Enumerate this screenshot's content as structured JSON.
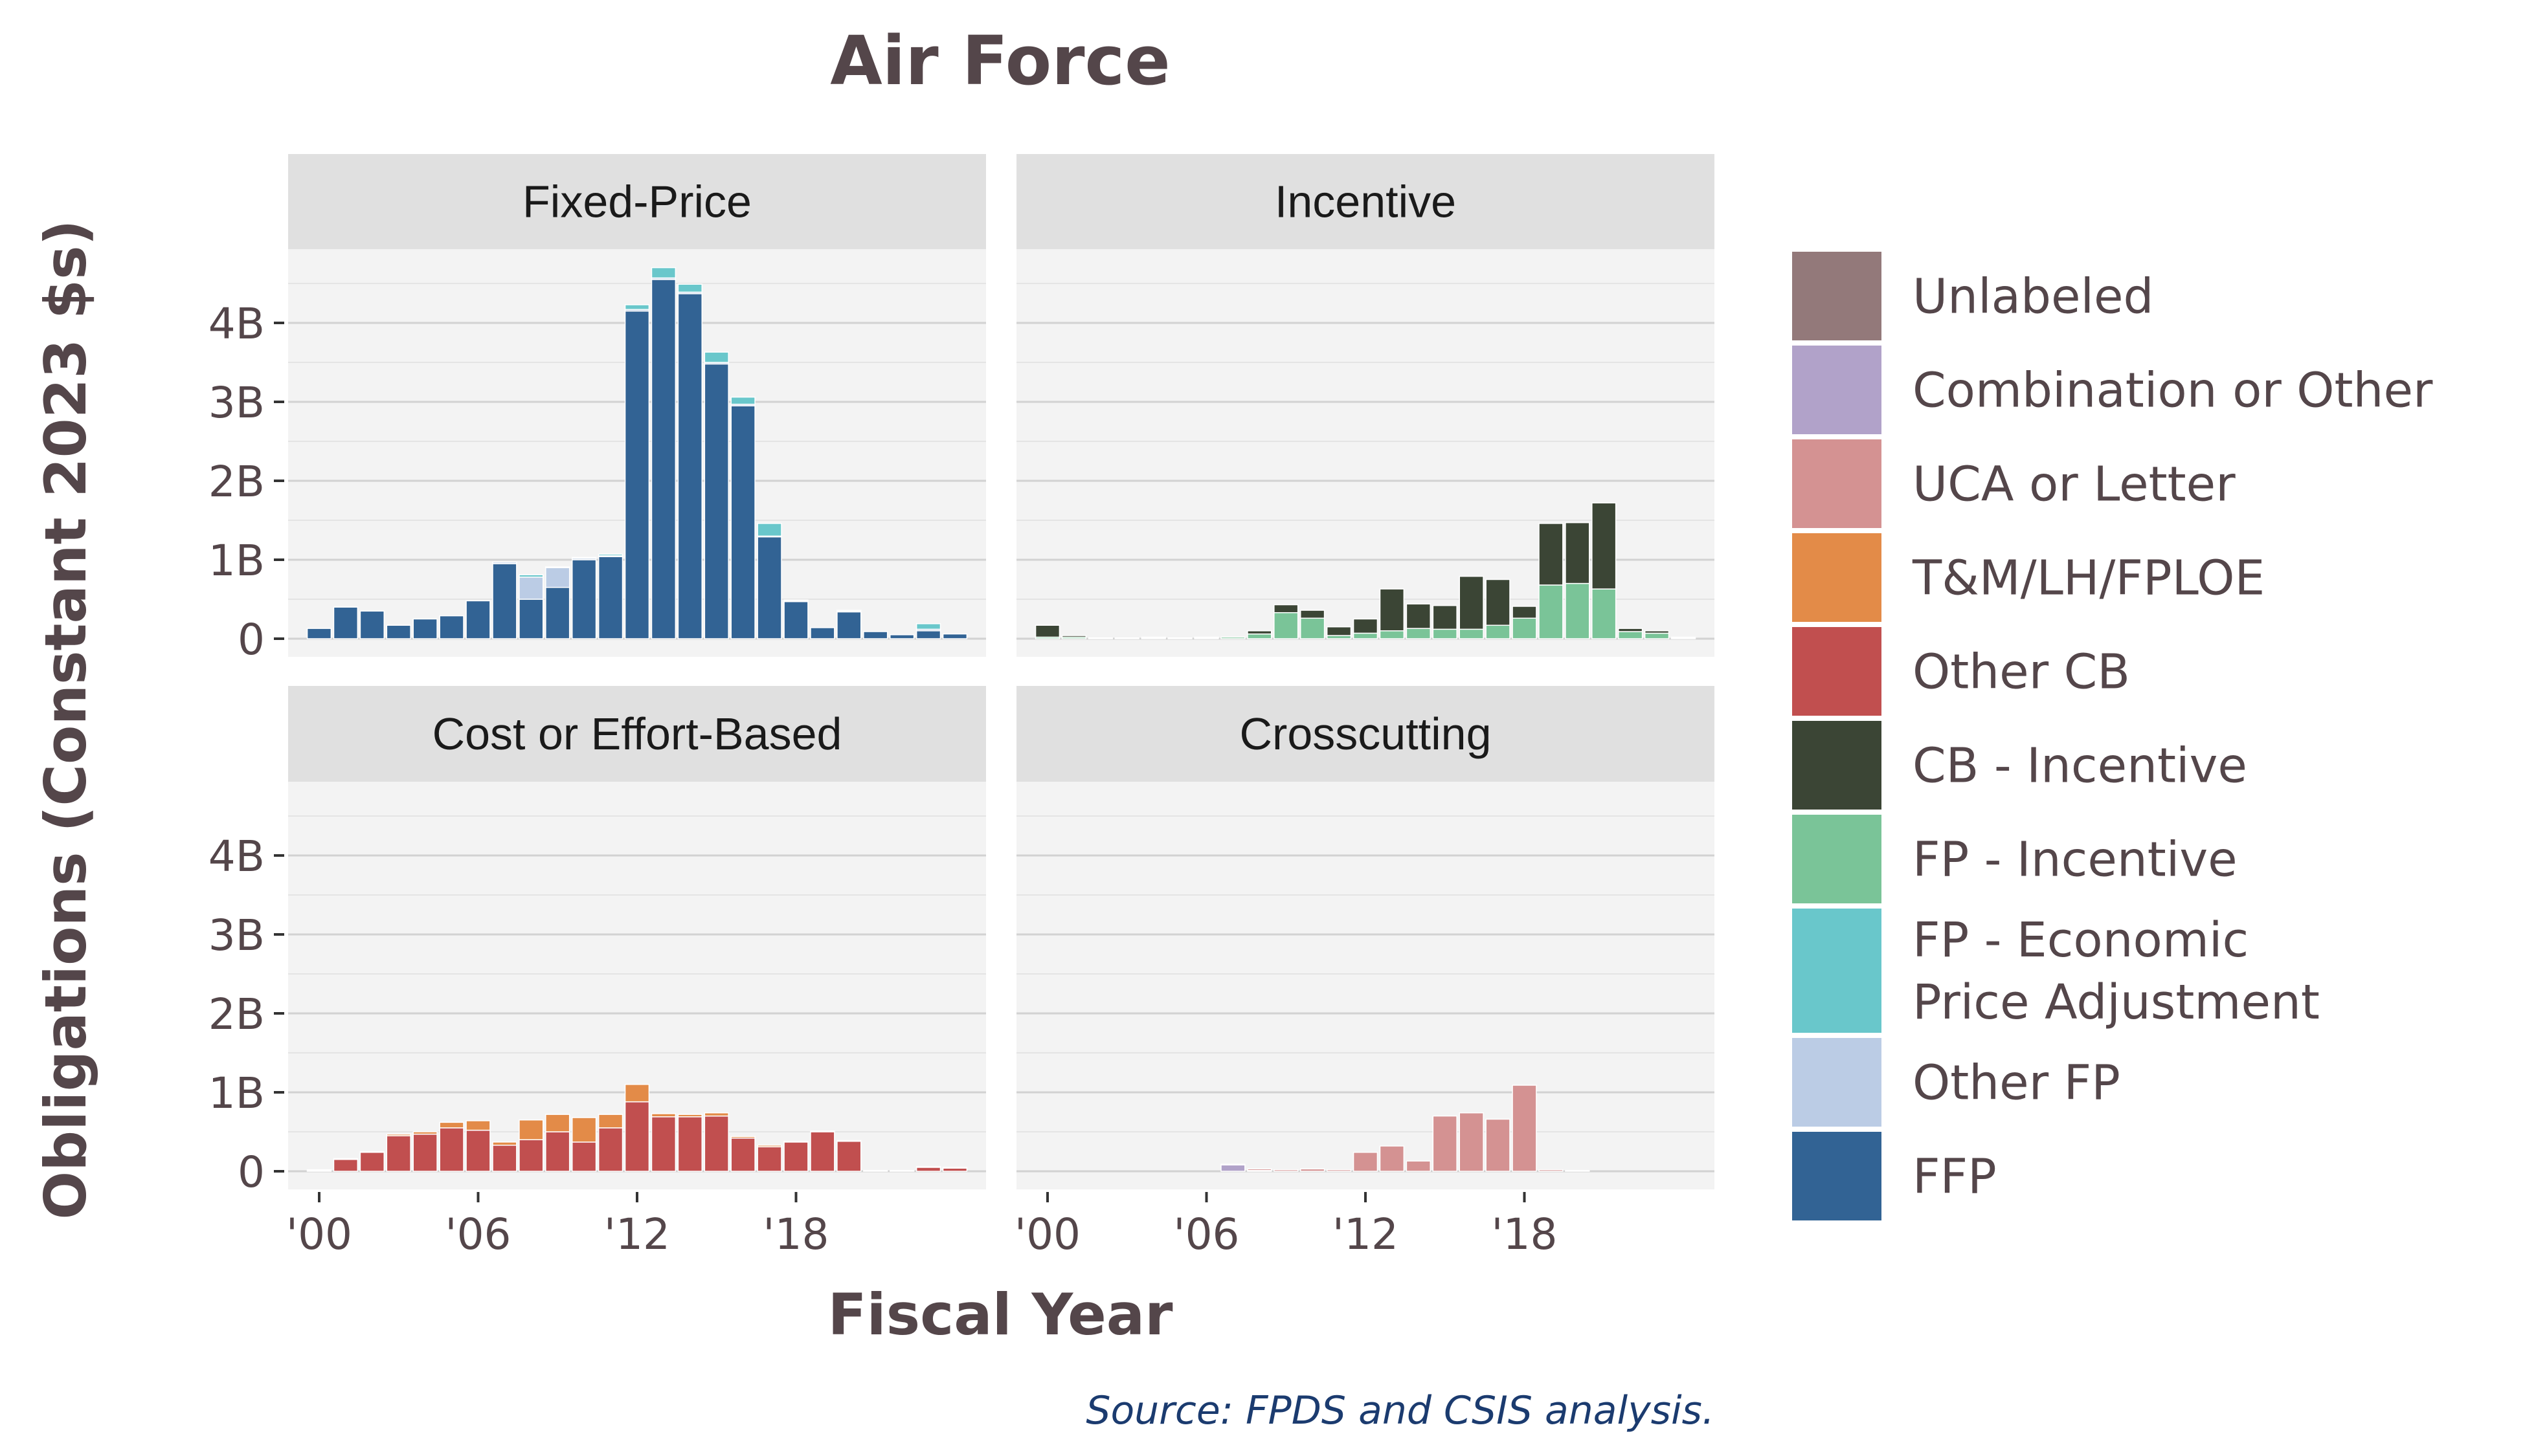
{
  "chart_data": {
    "type": "bar",
    "stacked": true,
    "title": "Air Force",
    "xlabel": "Fiscal Year",
    "ylabel": "Obligations (Constant 2023 $s)",
    "source": "Source: FPDS and CSIS analysis.",
    "x": [
      2000,
      2001,
      2002,
      2003,
      2004,
      2005,
      2006,
      2007,
      2008,
      2009,
      2010,
      2011,
      2012,
      2013,
      2014,
      2015,
      2016,
      2017,
      2018,
      2019,
      2020,
      2021,
      2022,
      2023,
      2024
    ],
    "x_ticks": [
      2000,
      2006,
      2012,
      2018
    ],
    "x_tick_labels": [
      "'00",
      "'06",
      "'12",
      "'18"
    ],
    "ylim": [
      0,
      5
    ],
    "y_ticks": [
      0,
      1,
      2,
      3,
      4
    ],
    "y_tick_labels": [
      "0",
      "1B",
      "2B",
      "3B",
      "4B"
    ],
    "y_units": "billions",
    "grid": true,
    "legend_position": "right",
    "legend": [
      {
        "key": "unlabeled",
        "label": "Unlabeled",
        "color": "#93797a"
      },
      {
        "key": "comb",
        "label": "Combination or Other",
        "color": "#b1a2c9"
      },
      {
        "key": "uca",
        "label": "UCA or Letter",
        "color": "#d49292"
      },
      {
        "key": "tm",
        "label": "T&M/LH/FPLOE",
        "color": "#e38b48"
      },
      {
        "key": "ocb",
        "label": "Other CB",
        "color": "#c14f4f"
      },
      {
        "key": "cbi",
        "label": "CB - Incentive",
        "color": "#3b4535"
      },
      {
        "key": "fpi",
        "label": "FP - Incentive",
        "color": "#7ac498"
      },
      {
        "key": "epa",
        "label": "FP - Economic Price Adjustment",
        "lines": [
          "FP - Economic",
          "Price Adjustment"
        ],
        "color": "#69c7cb"
      },
      {
        "key": "ofp",
        "label": "Other FP",
        "color": "#bbcce5"
      },
      {
        "key": "ffp",
        "label": "FFP",
        "color": "#326394"
      }
    ],
    "panels": [
      {
        "title": "Fixed-Price",
        "series": [
          {
            "key": "ffp",
            "values": [
              0.13,
              0.4,
              0.35,
              0.17,
              0.25,
              0.29,
              0.48,
              0.95,
              0.5,
              0.65,
              1.0,
              1.04,
              4.15,
              4.55,
              4.37,
              3.48,
              2.95,
              1.29,
              0.47,
              0.14,
              0.34,
              0.09,
              0.05,
              0.1,
              0.06
            ]
          },
          {
            "key": "ofp",
            "values": [
              0,
              0,
              0,
              0,
              0,
              0,
              0,
              0.02,
              0.28,
              0.25,
              0.02,
              0.01,
              0.02,
              0.02,
              0.02,
              0.02,
              0.02,
              0.01,
              0.01,
              0,
              0.01,
              0,
              0,
              0.02,
              0
            ]
          },
          {
            "key": "epa",
            "values": [
              0,
              0,
              0,
              0,
              0,
              0,
              0,
              0,
              0.03,
              0.01,
              0.01,
              0.02,
              0.06,
              0.13,
              0.1,
              0.13,
              0.09,
              0.16,
              0.01,
              0,
              0.01,
              0,
              0,
              0.07,
              0
            ]
          }
        ]
      },
      {
        "title": "Incentive",
        "series": [
          {
            "key": "fpi",
            "values": [
              0.02,
              0.02,
              0.01,
              0.01,
              0.01,
              0.01,
              0.01,
              0.02,
              0.06,
              0.33,
              0.26,
              0.04,
              0.07,
              0.1,
              0.13,
              0.12,
              0.12,
              0.17,
              0.26,
              0.68,
              0.7,
              0.63,
              0.09,
              0.07,
              0.01
            ]
          },
          {
            "key": "cbi",
            "values": [
              0.15,
              0.02,
              0,
              0,
              0.01,
              0,
              0.01,
              0,
              0.04,
              0.1,
              0.1,
              0.11,
              0.18,
              0.53,
              0.31,
              0.3,
              0.67,
              0.58,
              0.15,
              0.78,
              0.77,
              1.09,
              0.04,
              0.03,
              0.01
            ]
          }
        ]
      },
      {
        "title": "Cost or Effort-Based",
        "series": [
          {
            "key": "ocb",
            "values": [
              0.01,
              0.15,
              0.24,
              0.45,
              0.47,
              0.55,
              0.52,
              0.33,
              0.4,
              0.5,
              0.37,
              0.55,
              0.88,
              0.69,
              0.69,
              0.7,
              0.42,
              0.31,
              0.37,
              0.5,
              0.38,
              0.01,
              0.01,
              0.05,
              0.04
            ]
          },
          {
            "key": "tm",
            "values": [
              0.01,
              0.01,
              0.01,
              0.02,
              0.03,
              0.07,
              0.12,
              0.04,
              0.25,
              0.22,
              0.31,
              0.17,
              0.22,
              0.04,
              0.03,
              0.04,
              0.02,
              0.02,
              0.01,
              0.01,
              0.01,
              0,
              0,
              0.01,
              0.01
            ]
          }
        ]
      },
      {
        "title": "Crosscutting",
        "series": [
          {
            "key": "comb",
            "values": [
              0,
              0,
              0,
              0,
              0,
              0,
              0,
              0.08,
              0.01,
              0,
              0,
              0,
              0,
              0,
              0,
              0,
              0,
              0,
              0,
              0,
              0,
              0,
              0,
              0,
              0
            ]
          },
          {
            "key": "uca",
            "values": [
              0,
              0,
              0,
              0,
              0,
              0,
              0,
              0.01,
              0.02,
              0.02,
              0.03,
              0.02,
              0.24,
              0.32,
              0.13,
              0.7,
              0.74,
              0.66,
              1.09,
              0.02,
              0.01,
              0,
              0,
              0,
              0
            ]
          }
        ]
      }
    ]
  }
}
